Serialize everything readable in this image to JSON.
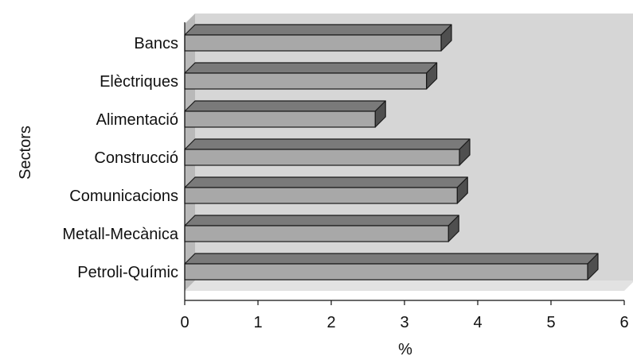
{
  "chart_data": {
    "type": "bar",
    "orientation": "horizontal",
    "style": "3d",
    "categories": [
      "Bancs",
      "Elèctriques",
      "Alimentació",
      "Construcció",
      "Comunicacions",
      "Metall-Mecànica",
      "Petroli-Químic"
    ],
    "values": [
      3.5,
      3.3,
      2.6,
      3.75,
      3.72,
      3.6,
      5.5
    ],
    "xlabel": "%",
    "ylabel": "Sectors",
    "xlim": [
      0,
      6
    ],
    "xticks": [
      "0",
      "1",
      "2",
      "3",
      "4",
      "5",
      "6"
    ],
    "grid": false,
    "legend": "none",
    "colors": {
      "bar_front": "#a8a8a8",
      "bar_top": "#7a7a7a",
      "bar_side": "#4f4f4f",
      "bar_stroke": "#1a1a1a",
      "back_wall": "#d6d6d6",
      "side_wall": "#b9b9b9",
      "floor": "#e2e2e2"
    }
  }
}
